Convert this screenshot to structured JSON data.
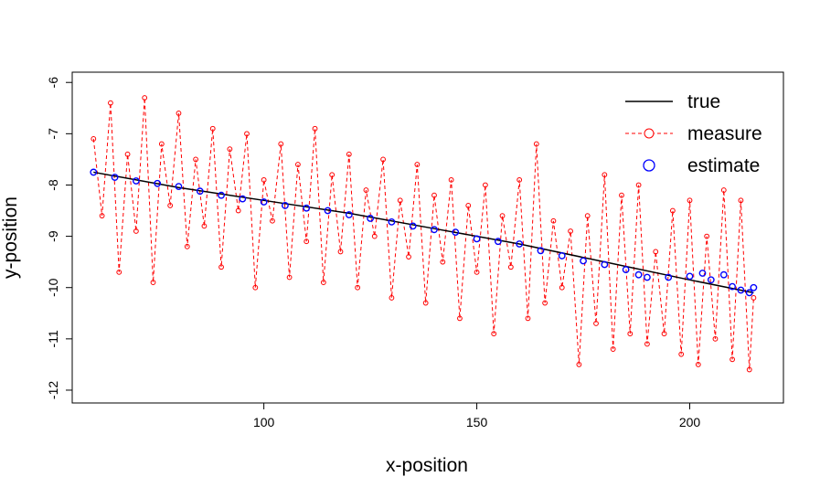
{
  "chart_data": {
    "type": "line",
    "title": "",
    "xlabel": "x-position",
    "ylabel": "y-position",
    "xlim": [
      55,
      222
    ],
    "ylim": [
      -12.25,
      -5.8
    ],
    "x_ticks": [
      100,
      150,
      200
    ],
    "y_ticks": [
      -12,
      -11,
      -10,
      -9,
      -8,
      -7,
      -6
    ],
    "x_tick_labels": [
      "100",
      "150",
      "200"
    ],
    "y_tick_labels": [
      "-12",
      "-11",
      "-10",
      "-9",
      "-8",
      "-7",
      "-6"
    ],
    "grid": false,
    "legend": {
      "placement": "top-right",
      "entries": [
        "true",
        "measure",
        "estimate"
      ]
    },
    "colors": {
      "true": "#000000",
      "measure": "#ff0000",
      "estimate": "#0000ff"
    },
    "series": [
      {
        "name": "true",
        "style": "solid-line",
        "x": [
          60,
          80,
          100,
          120,
          140,
          160,
          180,
          200,
          215
        ],
        "y": [
          -7.75,
          -8.05,
          -8.3,
          -8.55,
          -8.85,
          -9.15,
          -9.5,
          -9.85,
          -10.1
        ]
      },
      {
        "name": "measure",
        "style": "dashed-line-open-circles",
        "x": [
          60,
          62,
          64,
          66,
          68,
          70,
          72,
          74,
          76,
          78,
          80,
          82,
          84,
          86,
          88,
          90,
          92,
          94,
          96,
          98,
          100,
          102,
          104,
          106,
          108,
          110,
          112,
          114,
          116,
          118,
          120,
          122,
          124,
          126,
          128,
          130,
          132,
          134,
          136,
          138,
          140,
          142,
          144,
          146,
          148,
          150,
          152,
          154,
          156,
          158,
          160,
          162,
          164,
          166,
          168,
          170,
          172,
          174,
          176,
          178,
          180,
          182,
          184,
          186,
          188,
          190,
          192,
          194,
          196,
          198,
          200,
          202,
          204,
          206,
          208,
          210,
          212,
          214,
          215
        ],
        "y": [
          -7.1,
          -8.6,
          -6.4,
          -9.7,
          -7.4,
          -8.9,
          -6.3,
          -9.9,
          -7.2,
          -8.4,
          -6.6,
          -9.2,
          -7.5,
          -8.8,
          -6.9,
          -9.6,
          -7.3,
          -8.5,
          -7.0,
          -10.0,
          -7.9,
          -8.7,
          -7.2,
          -9.8,
          -7.6,
          -9.1,
          -6.9,
          -9.9,
          -7.8,
          -9.3,
          -7.4,
          -10.0,
          -8.1,
          -9.0,
          -7.5,
          -10.2,
          -8.3,
          -9.4,
          -7.6,
          -10.3,
          -8.2,
          -9.5,
          -7.9,
          -10.6,
          -8.4,
          -9.7,
          -8.0,
          -10.9,
          -8.6,
          -9.6,
          -7.9,
          -10.6,
          -7.2,
          -10.3,
          -8.7,
          -10.0,
          -8.9,
          -11.5,
          -8.6,
          -10.7,
          -7.8,
          -11.2,
          -8.2,
          -10.9,
          -8.0,
          -11.1,
          -9.3,
          -10.9,
          -8.5,
          -11.3,
          -8.3,
          -11.5,
          -9.0,
          -11.0,
          -8.1,
          -11.4,
          -8.3,
          -11.6,
          -10.2
        ]
      },
      {
        "name": "estimate",
        "style": "open-circles",
        "x": [
          60,
          65,
          70,
          75,
          80,
          85,
          90,
          95,
          100,
          105,
          110,
          115,
          120,
          125,
          130,
          135,
          140,
          145,
          150,
          155,
          160,
          165,
          170,
          175,
          180,
          185,
          188,
          190,
          195,
          200,
          203,
          205,
          208,
          210,
          212,
          214,
          215
        ],
        "y": [
          -7.75,
          -7.85,
          -7.92,
          -7.97,
          -8.03,
          -8.12,
          -8.2,
          -8.27,
          -8.33,
          -8.4,
          -8.45,
          -8.5,
          -8.58,
          -8.65,
          -8.72,
          -8.8,
          -8.87,
          -8.92,
          -9.05,
          -9.1,
          -9.15,
          -9.28,
          -9.38,
          -9.48,
          -9.55,
          -9.65,
          -9.75,
          -9.8,
          -9.8,
          -9.78,
          -9.72,
          -9.85,
          -9.75,
          -9.98,
          -10.05,
          -10.1,
          -10.0
        ]
      }
    ]
  }
}
